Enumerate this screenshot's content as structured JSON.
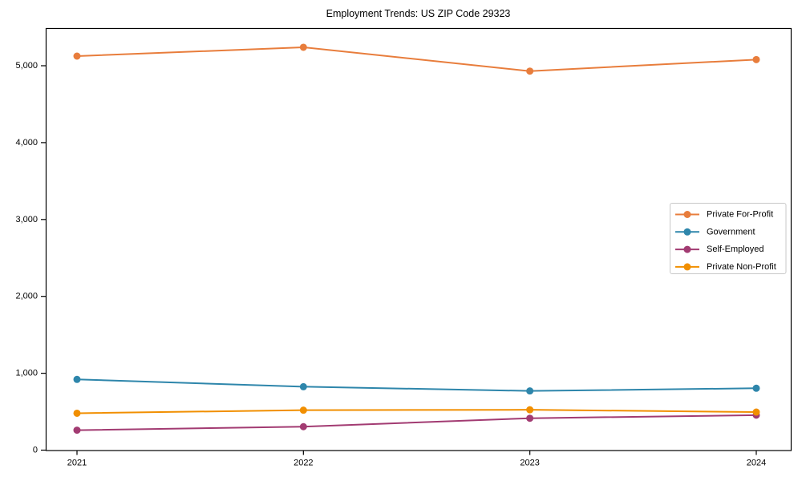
{
  "chart_data": {
    "type": "line",
    "title": "Employment Trends: US ZIP Code 29323",
    "categories": [
      "2021",
      "2022",
      "2023",
      "2024"
    ],
    "series": [
      {
        "name": "Private For-Profit",
        "color": "#E87D3C",
        "values": [
          5125,
          5240,
          4930,
          5080
        ]
      },
      {
        "name": "Government",
        "color": "#2E86AB",
        "values": [
          920,
          825,
          770,
          805
        ]
      },
      {
        "name": "Self-Employed",
        "color": "#A23B72",
        "values": [
          260,
          305,
          415,
          455
        ]
      },
      {
        "name": "Private Non-Profit",
        "color": "#F18F01",
        "values": [
          480,
          520,
          525,
          495
        ]
      }
    ],
    "xlabel": "",
    "ylabel": "",
    "ylim": [
      0,
      5490
    ],
    "yticks": [
      {
        "value": 0,
        "label": "0"
      },
      {
        "value": 1000,
        "label": "1,000"
      },
      {
        "value": 2000,
        "label": "2,000"
      },
      {
        "value": 3000,
        "label": "3,000"
      },
      {
        "value": 4000,
        "label": "4,000"
      },
      {
        "value": 5000,
        "label": "5,000"
      }
    ],
    "grid": false,
    "legend_position": "center-right",
    "colors": {
      "axis": "#000000",
      "legend_border": "#c8c8c8",
      "background": "#ffffff"
    }
  }
}
